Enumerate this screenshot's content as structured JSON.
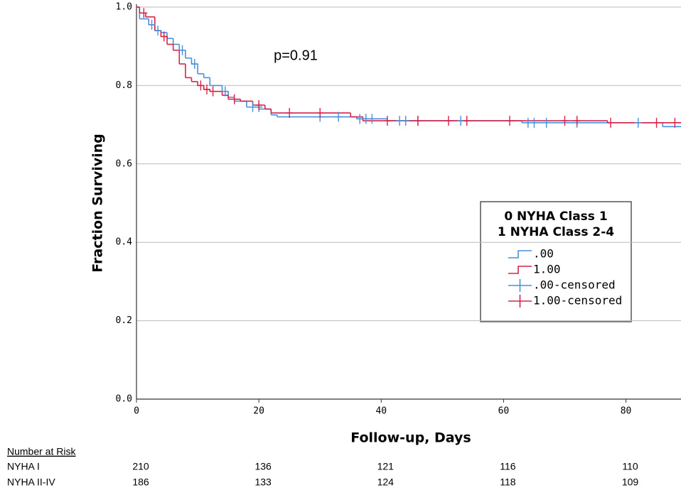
{
  "chart_data": {
    "type": "line",
    "step": "post",
    "xlabel": "Follow-up, Days",
    "ylabel": "Fraction Surviving",
    "annotation": "p=0.91",
    "xlim": [
      0,
      89
    ],
    "ylim": [
      0,
      1
    ],
    "xticks": [
      0,
      20,
      40,
      60,
      80
    ],
    "yticks": [
      {
        "value": 0,
        "label": "0.0"
      },
      0.2,
      0.4,
      0.6,
      0.8,
      {
        "value": 1,
        "label": "1.0"
      }
    ],
    "grid": true,
    "legend_title": [
      "0 NYHA Class 1",
      "1 NYHA Class 2-4"
    ],
    "legend_position": "right",
    "series": [
      {
        "name": ".00",
        "color": "#4a90d9",
        "marker": "step",
        "x": [
          0,
          0.5,
          2,
          3,
          4,
          5,
          6,
          7,
          8,
          9,
          10,
          11,
          12,
          14,
          15,
          16,
          18,
          20,
          22,
          23,
          36,
          41,
          63,
          86
        ],
        "values": [
          1.0,
          0.97,
          0.955,
          0.94,
          0.935,
          0.92,
          0.905,
          0.89,
          0.87,
          0.855,
          0.83,
          0.82,
          0.8,
          0.785,
          0.77,
          0.76,
          0.745,
          0.74,
          0.725,
          0.72,
          0.715,
          0.71,
          0.705,
          0.695
        ]
      },
      {
        "name": "1.00",
        "color": "#d6234a",
        "marker": "step",
        "x": [
          0,
          0.5,
          1.5,
          3,
          4,
          5,
          6,
          7,
          8,
          9,
          10,
          11,
          12,
          14,
          15,
          17,
          19,
          21,
          22,
          35,
          37,
          77
        ],
        "values": [
          1.0,
          0.985,
          0.975,
          0.94,
          0.925,
          0.905,
          0.89,
          0.855,
          0.82,
          0.81,
          0.8,
          0.79,
          0.785,
          0.775,
          0.765,
          0.76,
          0.75,
          0.74,
          0.73,
          0.72,
          0.71,
          0.705
        ]
      },
      {
        "name": ".00-censored",
        "color": "#4a90d9",
        "marker": "+",
        "x": [
          2.5,
          3.5,
          7.5,
          9.5,
          14.5,
          19,
          20,
          30,
          33,
          36.5,
          37.5,
          38.5,
          43,
          44,
          46,
          53,
          64,
          65,
          67,
          72,
          82
        ],
        "values": [
          0.955,
          0.94,
          0.89,
          0.855,
          0.785,
          0.745,
          0.745,
          0.72,
          0.72,
          0.715,
          0.715,
          0.715,
          0.71,
          0.71,
          0.71,
          0.71,
          0.705,
          0.705,
          0.705,
          0.705,
          0.705
        ]
      },
      {
        "name": "1.00-censored",
        "color": "#d6234a",
        "marker": "+",
        "x": [
          1.2,
          4.5,
          10.5,
          11.5,
          12.5,
          16,
          20,
          25,
          30,
          41,
          46,
          51,
          54,
          61,
          70,
          72,
          77.5,
          85,
          88
        ],
        "values": [
          0.985,
          0.925,
          0.8,
          0.79,
          0.785,
          0.765,
          0.75,
          0.73,
          0.73,
          0.71,
          0.71,
          0.71,
          0.71,
          0.71,
          0.71,
          0.71,
          0.705,
          0.705,
          0.705
        ]
      }
    ],
    "risk_table": {
      "title": "Number at Risk",
      "rows": [
        {
          "label": "NYHA I",
          "values": [
            210,
            136,
            121,
            116,
            110
          ]
        },
        {
          "label": "NYHA II-IV",
          "values": [
            186,
            133,
            124,
            118,
            109
          ]
        }
      ]
    }
  }
}
